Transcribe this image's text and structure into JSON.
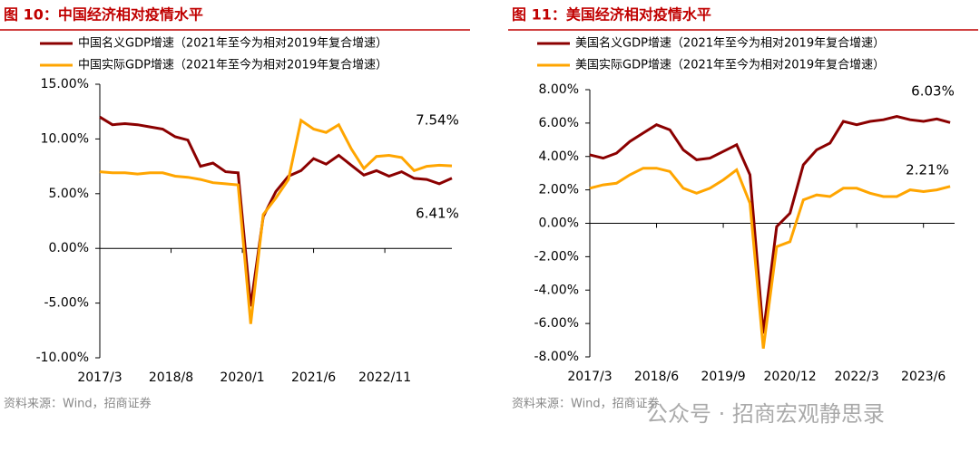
{
  "chart_data": [
    {
      "type": "line",
      "title": "图 10：中国经济相对疫情水平",
      "x": [
        0,
        3,
        6,
        9,
        12,
        15,
        18,
        21,
        24,
        27,
        30,
        33,
        36,
        39,
        42,
        45,
        48,
        51,
        54,
        57,
        60,
        63,
        66,
        69,
        72,
        75,
        78,
        81,
        84
      ],
      "xlim": [
        0,
        84
      ],
      "xticks": [
        {
          "value": 0,
          "label": "2017/3"
        },
        {
          "value": 17,
          "label": "2018/8"
        },
        {
          "value": 34,
          "label": "2020/1"
        },
        {
          "value": 51,
          "label": "2021/6"
        },
        {
          "value": 68,
          "label": "2022/11"
        }
      ],
      "ylim": [
        -10,
        15
      ],
      "yticks": [
        {
          "value": -10,
          "label": "-10.00%"
        },
        {
          "value": -5,
          "label": "-5.00%"
        },
        {
          "value": 0,
          "label": "0.00%"
        },
        {
          "value": 5,
          "label": "5.00%"
        },
        {
          "value": 10,
          "label": "10.00%"
        },
        {
          "value": 15,
          "label": "15.00%"
        }
      ],
      "series": [
        {
          "name": "中国名义GDP增速（2021年至今为相对2019年复合增速）",
          "color": "#8b0000",
          "values": [
            12.0,
            11.3,
            11.4,
            11.3,
            11.1,
            10.9,
            10.2,
            9.9,
            7.5,
            7.8,
            7.0,
            6.9,
            -5.3,
            2.9,
            5.2,
            6.6,
            7.1,
            8.2,
            7.7,
            8.5,
            7.6,
            6.7,
            7.1,
            6.6,
            7.0,
            6.4,
            6.3,
            5.9,
            6.41
          ]
        },
        {
          "name": "中国实际GDP增速（2021年至今为相对2019年复合增速）",
          "color": "#ffa500",
          "values": [
            7.0,
            6.9,
            6.9,
            6.8,
            6.9,
            6.9,
            6.6,
            6.5,
            6.3,
            6.0,
            5.9,
            5.8,
            -6.9,
            3.1,
            4.6,
            6.3,
            11.7,
            10.9,
            10.6,
            11.3,
            9.1,
            7.3,
            8.4,
            8.5,
            8.3,
            7.1,
            7.5,
            7.6,
            7.54
          ]
        }
      ],
      "annotations": [
        "7.54%",
        "6.41%"
      ],
      "source": "资料来源：Wind，招商证券"
    },
    {
      "type": "line",
      "title": "图 11：美国经济相对疫情水平",
      "x": [
        0,
        3,
        6,
        9,
        12,
        15,
        18,
        21,
        24,
        27,
        30,
        33,
        36,
        39,
        42,
        45,
        48,
        51,
        54,
        57,
        60,
        63,
        66,
        69,
        72,
        75,
        78,
        81
      ],
      "xlim": [
        0,
        82
      ],
      "xticks": [
        {
          "value": 0,
          "label": "2017/3"
        },
        {
          "value": 15,
          "label": "2018/6"
        },
        {
          "value": 30,
          "label": "2019/9"
        },
        {
          "value": 45,
          "label": "2020/12"
        },
        {
          "value": 60,
          "label": "2022/3"
        },
        {
          "value": 75,
          "label": "2023/6"
        }
      ],
      "ylim": [
        -8,
        8
      ],
      "yticks": [
        {
          "value": -8,
          "label": "-8.00%"
        },
        {
          "value": -6,
          "label": "-6.00%"
        },
        {
          "value": -4,
          "label": "-4.00%"
        },
        {
          "value": -2,
          "label": "-2.00%"
        },
        {
          "value": 0,
          "label": "0.00%"
        },
        {
          "value": 2,
          "label": "2.00%"
        },
        {
          "value": 4,
          "label": "4.00%"
        },
        {
          "value": 6,
          "label": "6.00%"
        },
        {
          "value": 8,
          "label": "8.00%"
        }
      ],
      "series": [
        {
          "name": "美国名义GDP增速（2021年至今为相对2019年复合增速）",
          "color": "#8b0000",
          "values": [
            4.1,
            3.9,
            4.2,
            4.9,
            5.4,
            5.9,
            5.6,
            4.4,
            3.8,
            3.9,
            4.3,
            4.7,
            2.9,
            -6.6,
            -0.2,
            0.6,
            3.5,
            4.4,
            4.8,
            6.1,
            5.9,
            6.1,
            6.2,
            6.4,
            6.2,
            6.1,
            6.25,
            6.03
          ]
        },
        {
          "name": "美国实际GDP增速（2021年至今为相对2019年复合增速）",
          "color": "#ffa500",
          "values": [
            2.1,
            2.3,
            2.4,
            2.9,
            3.3,
            3.3,
            3.1,
            2.1,
            1.8,
            2.1,
            2.6,
            3.2,
            1.2,
            -7.5,
            -1.4,
            -1.1,
            1.4,
            1.7,
            1.6,
            2.1,
            2.1,
            1.8,
            1.6,
            1.6,
            2.0,
            1.9,
            2.0,
            2.21
          ]
        }
      ],
      "annotations": [
        "6.03%",
        "2.21%"
      ],
      "source": "资料来源：Wind，招商证券"
    }
  ],
  "watermark": "公众号 · 招商宏观静思录"
}
